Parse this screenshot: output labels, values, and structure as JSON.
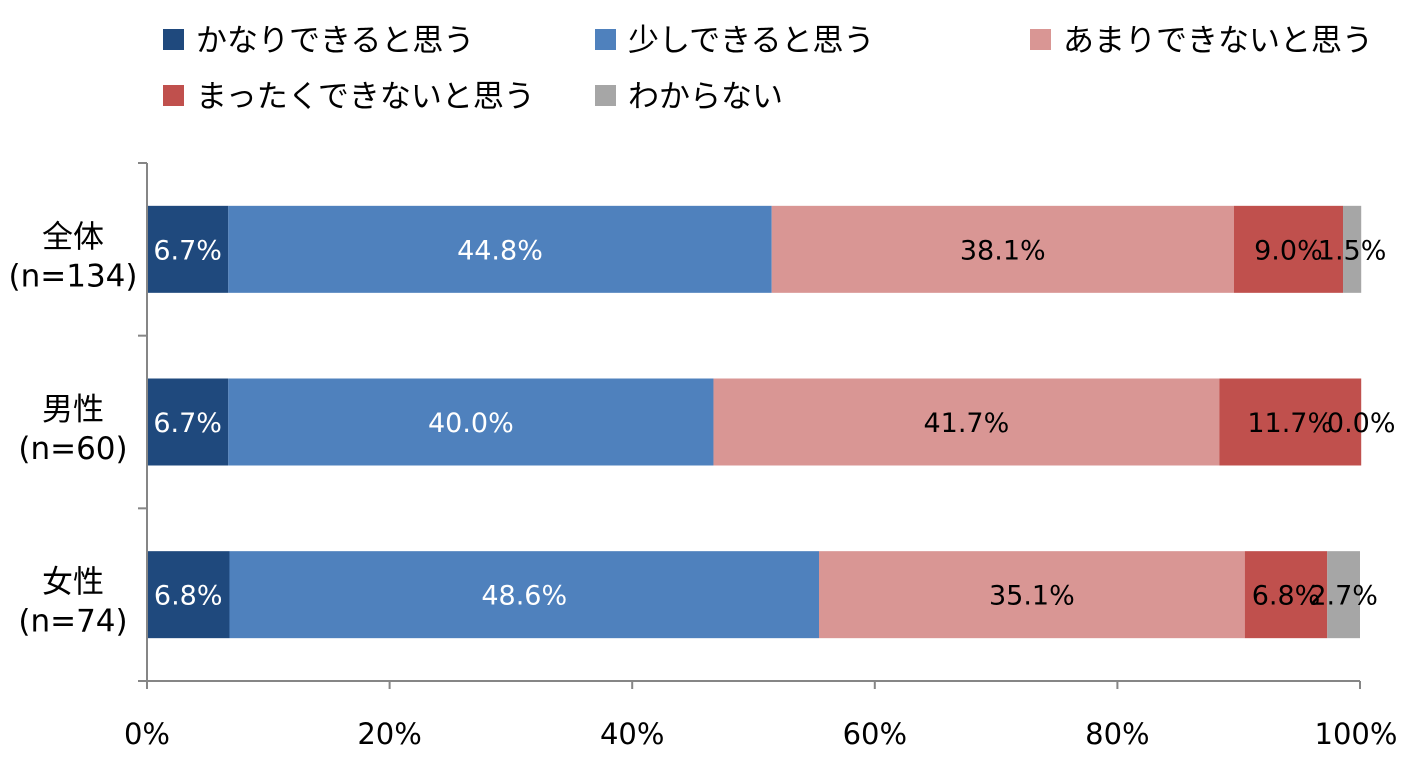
{
  "chart_data": {
    "type": "bar",
    "orientation": "horizontal",
    "stacked": true,
    "categories": [
      "全体\n(n=134)",
      "男性\n(n=60)",
      "女性\n(n=74)"
    ],
    "series": [
      {
        "name": "かなりできると思う",
        "color": "#1f497d",
        "label_color": "#ffffff",
        "values": [
          6.7,
          6.7,
          6.8
        ]
      },
      {
        "name": "少しできると思う",
        "color": "#4f81bd",
        "label_color": "#ffffff",
        "values": [
          44.8,
          40.0,
          48.6
        ]
      },
      {
        "name": "あまりできないと思う",
        "color": "#d99694",
        "label_color": "#000000",
        "values": [
          38.1,
          41.7,
          35.1
        ]
      },
      {
        "name": "まったくできないと思う",
        "color": "#c0504d",
        "label_color": "#000000",
        "values": [
          9.0,
          11.7,
          6.8
        ]
      },
      {
        "name": "わからない",
        "color": "#a6a6a6",
        "label_color": "#000000",
        "values": [
          1.5,
          0.0,
          2.7
        ]
      }
    ],
    "data_labels": [
      [
        "6.7%",
        "44.8%",
        "38.1%",
        "9.0%",
        "1.5%"
      ],
      [
        "6.7%",
        "40.0%",
        "41.7%",
        "11.7%",
        "0.0%"
      ],
      [
        "6.8%",
        "48.6%",
        "35.1%",
        "6.8%",
        "2.7%"
      ]
    ],
    "x_ticks": [
      "0%",
      "20%",
      "40%",
      "60%",
      "80%",
      "100%"
    ],
    "xlim": [
      0,
      100
    ],
    "xlabel": "",
    "ylabel": "",
    "grid": false,
    "legend_position": "top"
  }
}
